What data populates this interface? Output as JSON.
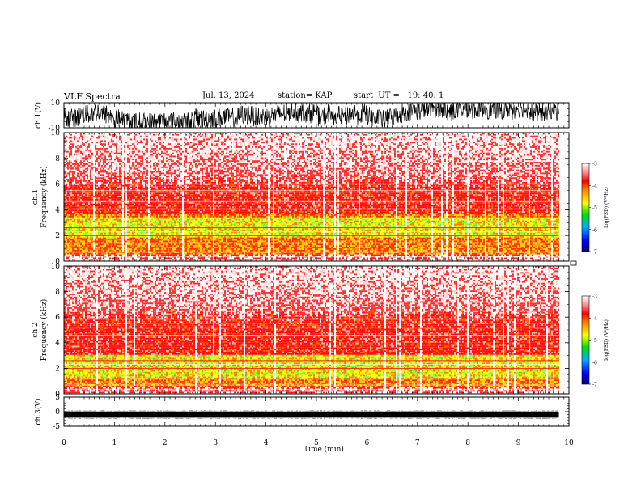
{
  "header": {
    "title": "VLF Spectra",
    "date": "Jul. 13, 2024",
    "station_label": "station= KAP",
    "start_label": "start  UT =   19: 40: 1"
  },
  "chart_data": [
    {
      "type": "line",
      "panel": "ch1-waveform",
      "ylabel": "ch.1(V)",
      "ylim": [
        -10,
        10
      ],
      "yticks": [
        -10,
        10
      ],
      "xlim": [
        0,
        10
      ],
      "data_extent_min": 9.8,
      "series_color": "#000000"
    },
    {
      "type": "heatmap",
      "panel": "ch1-spectrogram",
      "ylabel_line1": "ch.1",
      "ylabel_line2": "Frequency (kHz)",
      "ylim": [
        0,
        10
      ],
      "yticks": [
        0,
        2,
        4,
        6,
        8,
        10
      ],
      "xlim": [
        0,
        10
      ],
      "data_extent_min": 9.8,
      "colorbar": {
        "label": "log(PSD) (V²/Hz)",
        "range": [
          -7,
          -3
        ],
        "ticks": [
          -7,
          -6,
          -5,
          -4,
          -3
        ]
      }
    },
    {
      "type": "heatmap",
      "panel": "ch2-spectrogram",
      "ylabel_line1": "ch.2",
      "ylabel_line2": "Frequency (kHz)",
      "ylim": [
        0,
        10
      ],
      "yticks": [
        0,
        2,
        4,
        6,
        8,
        10
      ],
      "xlim": [
        0,
        10
      ],
      "data_extent_min": 9.8,
      "colorbar": {
        "label": "log(PSD) (V²/Hz)",
        "range": [
          -7,
          -3
        ],
        "ticks": [
          -7,
          -6,
          -5,
          -4,
          -3
        ]
      }
    },
    {
      "type": "line",
      "panel": "ch3-waveform",
      "ylabel": "ch.3(V)",
      "ylim": [
        -5,
        5
      ],
      "yticks": [
        -5,
        0,
        5
      ],
      "xlim": [
        0,
        10
      ],
      "approx_value": -1,
      "data_extent_min": 9.8,
      "series_color": "#000000"
    }
  ],
  "xaxis": {
    "label": "Time (min)",
    "ticks": [
      0,
      1,
      2,
      3,
      4,
      5,
      6,
      7,
      8,
      9,
      10
    ]
  },
  "colors": {
    "spectro_low": "#ff0000",
    "spectro_mid": "#ffff00",
    "spectro_high": "#00e000",
    "background": "#ffffff"
  }
}
